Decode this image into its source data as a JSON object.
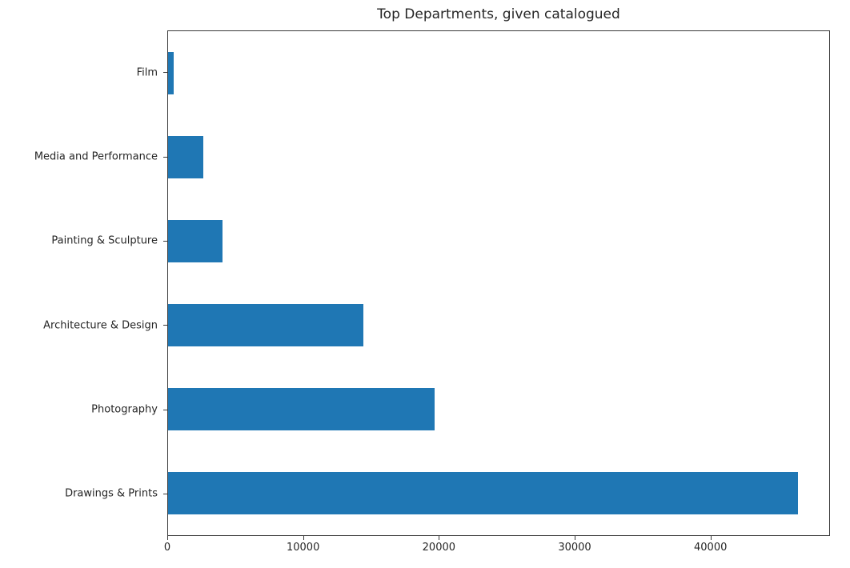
{
  "chart_data": {
    "type": "bar",
    "orientation": "horizontal",
    "title": "Top Departments, given catalogued",
    "categories_top_to_bottom": [
      "Film",
      "Media and Performance",
      "Painting & Sculpture",
      "Architecture & Design",
      "Photography",
      "Drawings & Prints"
    ],
    "values_top_to_bottom": [
      400,
      2600,
      4000,
      14400,
      19700,
      46500
    ],
    "xlabel": "",
    "ylabel": "",
    "xlim": [
      0,
      48800
    ],
    "xticks": [
      0,
      10000,
      20000,
      30000,
      40000
    ],
    "xtick_labels": [
      "0",
      "10000",
      "20000",
      "30000",
      "40000"
    ],
    "grid": false,
    "legend": null,
    "bar_color": "#1f77b4",
    "bar_height_fraction": 0.5,
    "text_color": "#262626",
    "spine_color": "#3a3a3a",
    "background_color": "#ffffff"
  }
}
